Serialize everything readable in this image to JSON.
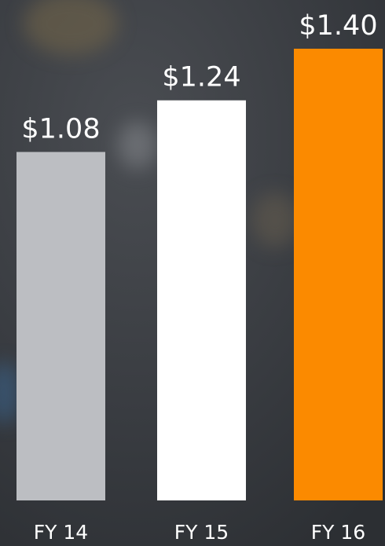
{
  "chart_data": {
    "type": "bar",
    "categories": [
      "FY 14",
      "FY 15",
      "FY 16"
    ],
    "values": [
      1.08,
      1.24,
      1.4
    ],
    "value_labels": [
      "$1.08",
      "$1.24",
      "$1.40"
    ],
    "colors": [
      "#bcbec2",
      "#ffffff",
      "#fb8a00"
    ]
  }
}
